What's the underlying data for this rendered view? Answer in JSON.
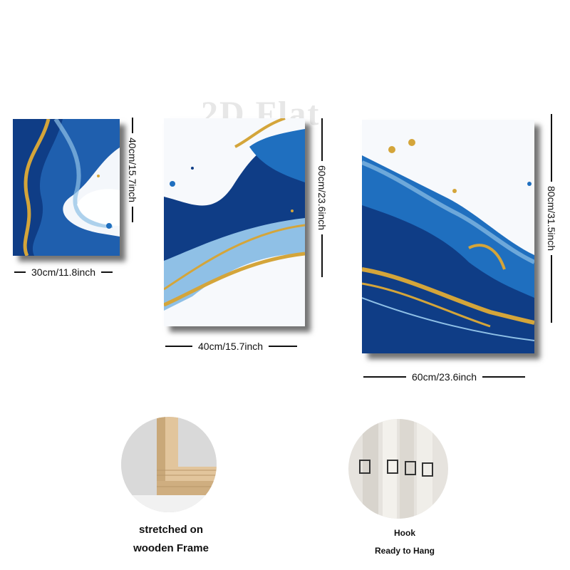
{
  "watermark": "2D Flat",
  "panels": [
    {
      "width_label": "30cm/11.8inch",
      "height_label": "40cm/15.7inch"
    },
    {
      "width_label": "40cm/15.7inch",
      "height_label": "60cm/23.6inch"
    },
    {
      "width_label": "60cm/23.6inch",
      "height_label": "80cm/31.5inch"
    }
  ],
  "features": {
    "frame": {
      "line1": "stretched on",
      "line2": "wooden Frame"
    },
    "hook": {
      "line1": "Hook",
      "line2": "Ready to Hang"
    }
  },
  "colors": {
    "deep_blue": "#0f3d86",
    "mid_blue": "#1f6fbf",
    "light_blue": "#8fc0e6",
    "gold": "#d4a53a",
    "wood": "#e2c59c"
  }
}
